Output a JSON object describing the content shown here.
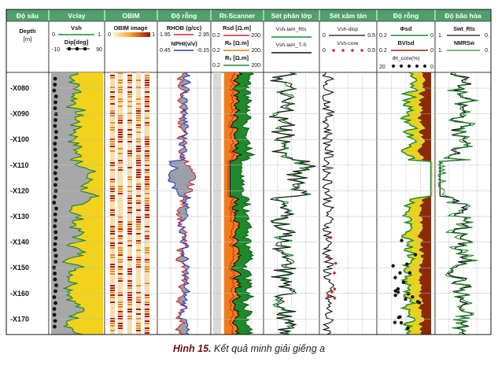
{
  "columns": [
    {
      "key": "depth",
      "header": "Độ sâu"
    },
    {
      "key": "vclay",
      "header": "Vclay"
    },
    {
      "key": "obim",
      "header": "OBIM"
    },
    {
      "key": "porosity",
      "header": "Độ rỗng"
    },
    {
      "key": "rtscanner",
      "header": "Rt-Scanner"
    },
    {
      "key": "shale_layer",
      "header": "Sét phân lớp"
    },
    {
      "key": "shale_disp",
      "header": "Sét xâm tán"
    },
    {
      "key": "porosity2",
      "header": "Độ rỗng"
    },
    {
      "key": "saturation",
      "header": "Độ bão hòa"
    }
  ],
  "track_headers": {
    "depth": {
      "label": "Depth",
      "unit": "[m]"
    },
    "vclay": {
      "vsh": "Vsh",
      "vsh_min": "0.",
      "vsh_max": "1.",
      "dip": "Dip[deg]",
      "dip_min": "-10",
      "dip_max": "90"
    },
    "obim": {
      "label": "OBIM image",
      "min": "0",
      "max": "1"
    },
    "porosity": {
      "rhob": "RHOB (g/cc)",
      "rhob_min": "1.95",
      "rhob_max": "2.95",
      "nphi": "NPHI(v/v)",
      "nphi_min": "0.45",
      "nphi_max": "-0.15"
    },
    "rtscanner": {
      "rsd": "Rsd [Ω.m]",
      "rsd_min": "0.2",
      "rsd_max": "200.",
      "rh": "Rₕ [Ω.m]",
      "rh_min": "0.2",
      "rh_max": "200.",
      "rv": "Rᵥ [Ω.m]",
      "rv_min": "0.2",
      "rv_max": "200."
    },
    "shale_layer": {
      "l1": "Vsh-lam_Rts",
      "l2": "Vsh-lam_T-S"
    },
    "shale_disp": {
      "l1": "Vsh-disp",
      "min1": "0",
      "max1": "0.5",
      "l2": "Vsh-core",
      "min2": "0",
      "max2": "0.5"
    },
    "porosity2": {
      "phi": "Φsd",
      "phi_min": "0.2",
      "phi_max": "0",
      "bvi": "BVIsd",
      "bvi_min": "0.2",
      "bvi_max": "0",
      "core": "Φt_core(%)",
      "core_min": "20",
      "core_max": "0"
    },
    "saturation": {
      "swt": "Swt_Rts",
      "swt_min": "1.",
      "swt_max": "0.",
      "nmr": "NMRSw",
      "nmr_min": "1.",
      "nmr_max": "0."
    }
  },
  "depth_labels": [
    "-X080",
    "-X090",
    "-X100",
    "-X110",
    "-X120",
    "-X130",
    "-X140",
    "-X150",
    "-X160",
    "-X170"
  ],
  "caption": {
    "prefix": "Hình 15.",
    "text": " Kết quả minh giải giếng a"
  },
  "colors": {
    "header_bg": "#4fa06c",
    "shale": "#a8a8a8",
    "sand": "#f2d21c",
    "green": "#1f8a2c",
    "orange": "#f07d1a",
    "red": "#d2262a",
    "blue": "#2a3bc8",
    "brown": "#8a2a08",
    "yellow": "#e6d320"
  }
}
